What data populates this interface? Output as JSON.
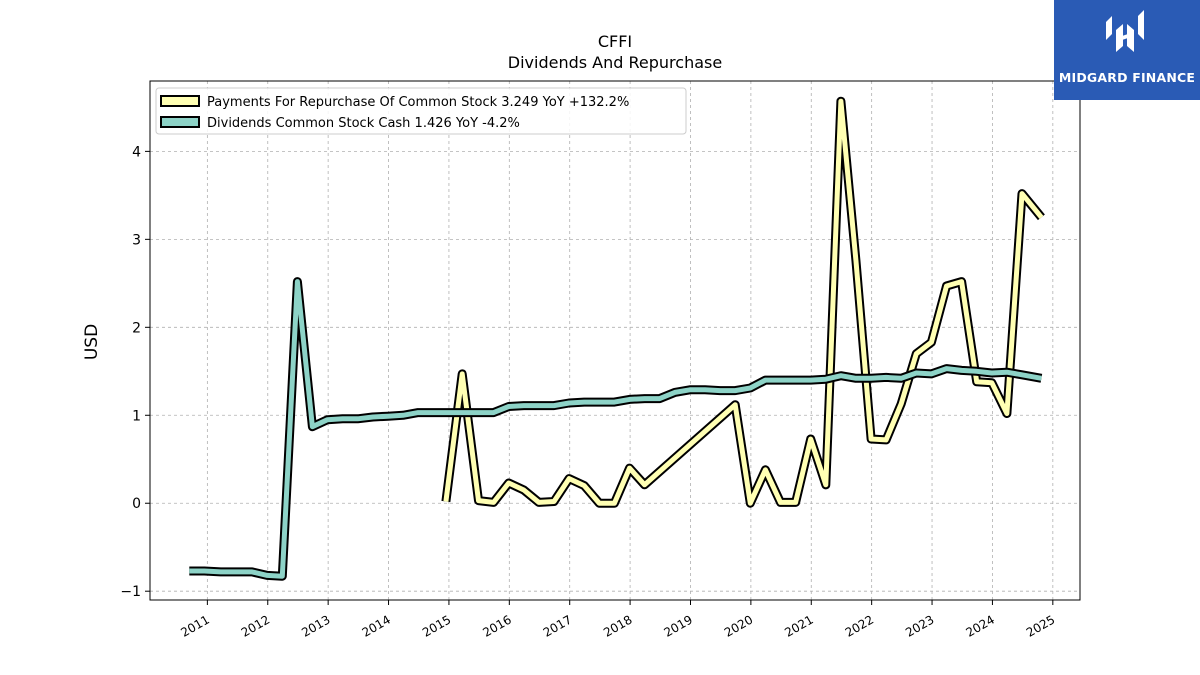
{
  "brand": {
    "name": "MIDGARD FINANCE",
    "bg_color": "#2a5bb5",
    "icon": "midgard-logo-icon"
  },
  "chart_data": {
    "type": "line",
    "title": "CFFI",
    "subtitle": "Dividends And Repurchase",
    "xlabel": "",
    "ylabel": "USD",
    "ylim": [
      -1.1,
      4.8
    ],
    "yticks": [
      -1,
      0,
      1,
      2,
      3,
      4
    ],
    "ytick_labels": [
      "−1",
      "0",
      "1",
      "2",
      "3",
      "4"
    ],
    "xlim": [
      2010.05,
      2025.45
    ],
    "xticks": [
      2011,
      2012,
      2013,
      2014,
      2015,
      2016,
      2017,
      2018,
      2019,
      2020,
      2021,
      2022,
      2023,
      2024,
      2025
    ],
    "xtick_labels": [
      "2011",
      "2012",
      "2013",
      "2014",
      "2015",
      "2016",
      "2017",
      "2018",
      "2019",
      "2020",
      "2021",
      "2022",
      "2023",
      "2024",
      "2025"
    ],
    "grid": true,
    "legend_position": "top-left",
    "series": [
      {
        "name": "Payments For Repurchase Of Common Stock",
        "legend_label": "Payments For Repurchase Of Common Stock  3.249 YoY +132.2%",
        "color": "#ffffb3",
        "x": [
          2014.95,
          2015.22,
          2015.49,
          2015.74,
          2015.99,
          2016.24,
          2016.49,
          2016.74,
          2016.99,
          2017.24,
          2017.49,
          2017.74,
          2017.99,
          2018.24,
          2019.74,
          2019.99,
          2020.24,
          2020.49,
          2020.74,
          2020.99,
          2021.24,
          2021.49,
          2021.74,
          2021.99,
          2022.24,
          2022.49,
          2022.74,
          2022.99,
          2023.24,
          2023.49,
          2023.74,
          2023.99,
          2024.24,
          2024.49,
          2024.81
        ],
        "y": [
          0.02,
          1.47,
          0.03,
          0.01,
          0.23,
          0.15,
          0.01,
          0.02,
          0.28,
          0.2,
          0.0,
          0.0,
          0.4,
          0.21,
          1.12,
          0.0,
          0.38,
          0.01,
          0.01,
          0.73,
          0.21,
          4.57,
          2.75,
          0.73,
          0.72,
          1.13,
          1.7,
          1.83,
          2.47,
          2.52,
          1.38,
          1.37,
          1.02,
          3.52,
          3.25
        ]
      },
      {
        "name": "Dividends Common Stock Cash",
        "legend_label": "Dividends Common Stock Cash  1.426 YoY -4.2%",
        "color": "#8dd3c7",
        "x": [
          2010.7,
          2010.95,
          2011.22,
          2011.49,
          2011.74,
          2011.99,
          2012.24,
          2012.49,
          2012.74,
          2012.99,
          2013.24,
          2013.49,
          2013.74,
          2013.99,
          2014.24,
          2014.49,
          2014.74,
          2014.99,
          2015.24,
          2015.49,
          2015.74,
          2015.99,
          2016.24,
          2016.49,
          2016.74,
          2016.99,
          2017.24,
          2017.49,
          2017.74,
          2017.99,
          2018.24,
          2018.49,
          2018.74,
          2018.99,
          2019.24,
          2019.49,
          2019.74,
          2019.99,
          2020.24,
          2020.49,
          2020.74,
          2020.99,
          2021.24,
          2021.49,
          2021.74,
          2021.99,
          2022.24,
          2022.49,
          2022.74,
          2022.99,
          2023.24,
          2023.49,
          2023.74,
          2023.99,
          2024.24,
          2024.49,
          2024.81
        ],
        "y": [
          -0.77,
          -0.77,
          -0.78,
          -0.78,
          -0.78,
          -0.82,
          -0.83,
          2.52,
          0.87,
          0.95,
          0.96,
          0.96,
          0.98,
          0.99,
          1.0,
          1.03,
          1.03,
          1.03,
          1.03,
          1.03,
          1.03,
          1.1,
          1.11,
          1.11,
          1.11,
          1.14,
          1.15,
          1.15,
          1.15,
          1.18,
          1.19,
          1.19,
          1.26,
          1.29,
          1.29,
          1.28,
          1.28,
          1.31,
          1.4,
          1.4,
          1.4,
          1.4,
          1.41,
          1.45,
          1.42,
          1.42,
          1.43,
          1.42,
          1.48,
          1.47,
          1.53,
          1.51,
          1.5,
          1.48,
          1.49,
          1.46,
          1.42
        ]
      }
    ]
  }
}
